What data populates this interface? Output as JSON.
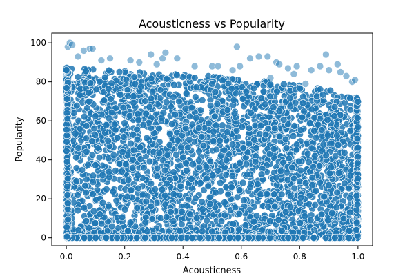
{
  "chart_data": {
    "type": "scatter",
    "title": "Acousticness vs Popularity",
    "xlabel": "Acousticness",
    "ylabel": "Popularity",
    "xlim": [
      -0.05,
      1.05
    ],
    "ylim": [
      -4,
      105
    ],
    "xticks": [
      0.0,
      0.2,
      0.4,
      0.6,
      0.8,
      1.0
    ],
    "xtick_labels": [
      "0.0",
      "0.2",
      "0.4",
      "0.6",
      "0.8",
      "1.0"
    ],
    "yticks": [
      0,
      20,
      40,
      60,
      80,
      100
    ],
    "ytick_labels": [
      "0",
      "20",
      "40",
      "60",
      "80",
      "100"
    ],
    "grid": false,
    "marker_color": "#1f77b4",
    "marker_alpha": 0.5,
    "points": [
      [
        0.005,
        98
      ],
      [
        0.012,
        100
      ],
      [
        0.02,
        99
      ],
      [
        0.04,
        93
      ],
      [
        0.06,
        96
      ],
      [
        0.08,
        97
      ],
      [
        0.09,
        97
      ],
      [
        0.12,
        91
      ],
      [
        0.15,
        92
      ],
      [
        0.22,
        91
      ],
      [
        0.25,
        90
      ],
      [
        0.29,
        94
      ],
      [
        0.31,
        89
      ],
      [
        0.33,
        92
      ],
      [
        0.34,
        95
      ],
      [
        0.38,
        92
      ],
      [
        0.44,
        88
      ],
      [
        0.5,
        88
      ],
      [
        0.52,
        88
      ],
      [
        0.57,
        86
      ],
      [
        0.585,
        98
      ],
      [
        0.595,
        88
      ],
      [
        0.63,
        92
      ],
      [
        0.66,
        93
      ],
      [
        0.69,
        93
      ],
      [
        0.72,
        90
      ],
      [
        0.73,
        89
      ],
      [
        0.76,
        87
      ],
      [
        0.79,
        88
      ],
      [
        0.84,
        86
      ],
      [
        0.87,
        88
      ],
      [
        0.89,
        94
      ],
      [
        0.9,
        86
      ],
      [
        0.93,
        89
      ],
      [
        0.94,
        85
      ],
      [
        0.96,
        83
      ],
      [
        0.98,
        80
      ],
      [
        0.99,
        81
      ],
      [
        0.5,
        79
      ],
      [
        0.5,
        79
      ],
      [
        0.7,
        82
      ],
      [
        0.78,
        84
      ],
      [
        0.82,
        79
      ],
      [
        0.65,
        5
      ],
      [
        0.7,
        3
      ],
      [
        0.9,
        2
      ],
      [
        0.85,
        4
      ]
    ],
    "density": {
      "x_envelope": [
        0.0,
        0.1,
        0.2,
        0.3,
        0.4,
        0.5,
        0.6,
        0.7,
        0.8,
        0.9,
        1.0
      ],
      "y_upper": [
        88,
        87,
        86,
        85,
        84,
        83,
        81,
        80,
        78,
        76,
        72
      ],
      "y_min": 0,
      "approx_points": 3200,
      "bottom_band_fraction": 0.12
    }
  }
}
